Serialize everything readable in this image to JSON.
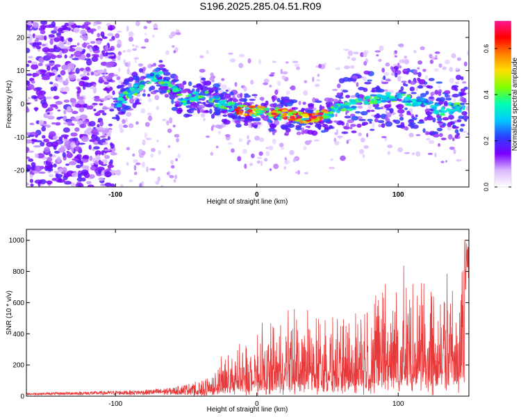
{
  "page": {
    "title": "S196.2025.285.04.51.R09"
  },
  "chart_data": [
    {
      "type": "heatmap",
      "title": "S196.2025.285.04.51.R09",
      "xlabel": "Height of straight line (km)",
      "ylabel": "Frequency (Hz)",
      "xlim": [
        -163,
        150
      ],
      "ylim": [
        -25,
        25
      ],
      "xticks": [
        -100,
        0,
        100
      ],
      "yticks": [
        -20,
        -10,
        0,
        10,
        20
      ],
      "colorbar": {
        "label": "Normalized spectral amplitude",
        "range": [
          0,
          0.72
        ],
        "ticks": [
          0.0,
          0.2,
          0.4,
          0.6
        ],
        "colors": [
          "#ffffff",
          "#d9b8ff",
          "#7a00ff",
          "#2d3cff",
          "#00c8ff",
          "#00ffb4",
          "#7fff00",
          "#ffe000",
          "#ff8000",
          "#ff0000",
          "#ff1493"
        ]
      },
      "ridge": {
        "x": [
          -100,
          -90,
          -80,
          -70,
          -60,
          -50,
          -40,
          -30,
          -20,
          -10,
          0,
          10,
          20,
          30,
          40,
          50,
          60,
          70,
          80,
          90,
          100,
          110,
          120,
          130,
          140
        ],
        "y": [
          0,
          3,
          6,
          9,
          4,
          1,
          3,
          1,
          -1,
          -2,
          -2,
          -3,
          -3,
          -4,
          -4,
          -3,
          -1,
          0,
          1,
          2,
          2,
          1,
          0,
          -2,
          -1
        ]
      }
    },
    {
      "type": "line",
      "xlabel": "Height of straight line (km)",
      "ylabel": "SNR (10 * v/v)",
      "xlim": [
        -163,
        150
      ],
      "ylim": [
        0,
        1070
      ],
      "xticks": [
        -100,
        0,
        100
      ],
      "yticks": [
        0,
        200,
        400,
        600,
        800,
        1000
      ],
      "series": [
        {
          "color": "#e8393a",
          "envelope_x": [
            -163,
            -120,
            -80,
            -60,
            -40,
            -30,
            -20,
            0,
            20,
            40,
            60,
            80,
            100,
            120,
            140,
            148
          ],
          "envelope_y": [
            20,
            30,
            40,
            55,
            100,
            180,
            280,
            380,
            500,
            520,
            480,
            700,
            720,
            740,
            760,
            1060
          ]
        }
      ]
    }
  ]
}
